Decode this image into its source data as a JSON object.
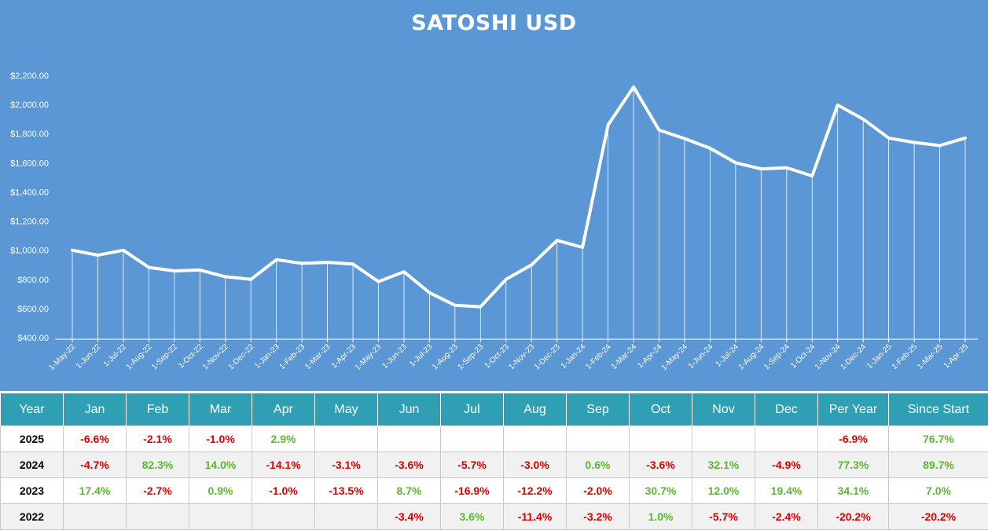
{
  "chart_data": {
    "type": "line",
    "title": "SATOSHI USD",
    "ylim": [
      400,
      2200
    ],
    "y_ticks": [
      "$400.00",
      "$600.00",
      "$800.00",
      "$1,000.00",
      "$1,200.00",
      "$1,400.00",
      "$1,600.00",
      "$1,800.00",
      "$2,000.00",
      "$2,200.00"
    ],
    "y_tick_values": [
      400,
      600,
      800,
      1000,
      1200,
      1400,
      1600,
      1800,
      2000,
      2200
    ],
    "x": [
      "1-May-22",
      "1-Jun-22",
      "1-Jul-22",
      "1-Aug-22",
      "1-Sep-22",
      "1-Oct-22",
      "1-Nov-22",
      "1-Dec-22",
      "1-Jan-23",
      "1-Feb-23",
      "1-Mar-23",
      "1-Apr-23",
      "1-May-23",
      "1-Jun-23",
      "1-Jul-23",
      "1-Aug-23",
      "1-Sep-23",
      "1-Oct-23",
      "1-Nov-23",
      "1-Dec-23",
      "1-Jan-24",
      "1-Feb-24",
      "1-Mar-24",
      "1-Apr-24",
      "1-May-24",
      "1-Jun-24",
      "1-Jul-24",
      "1-Aug-24",
      "1-Sep-24",
      "1-Oct-24",
      "1-Nov-24",
      "1-Dec-24",
      "1-Jan-25",
      "1-Feb-25",
      "1-Mar-25",
      "1-Apr-25"
    ],
    "values": [
      1000,
      966,
      1000,
      882,
      858,
      864,
      818,
      800,
      935,
      910,
      917,
      905,
      785,
      852,
      708,
      622,
      612,
      800,
      899,
      1067,
      1020,
      1860,
      2120,
      1825,
      1766,
      1700,
      1600,
      1558,
      1566,
      1510,
      1997,
      1900,
      1770,
      1740,
      1718,
      1770
    ],
    "grid": false,
    "line_color": "#ffffff",
    "background": "#5b97d5"
  },
  "table": {
    "headers": [
      "Year",
      "Jan",
      "Feb",
      "Mar",
      "Apr",
      "May",
      "Jun",
      "Jul",
      "Aug",
      "Sep",
      "Oct",
      "Nov",
      "Dec",
      "Per Year",
      "Since Start"
    ],
    "rows": [
      [
        "2025",
        "-6.6%",
        "-2.1%",
        "-1.0%",
        "2.9%",
        "",
        "",
        "",
        "",
        "",
        "",
        "",
        "",
        "-6.9%",
        "76.7%"
      ],
      [
        "2024",
        "-4.7%",
        "82.3%",
        "14.0%",
        "-14.1%",
        "-3.1%",
        "-3.6%",
        "-5.7%",
        "-3.0%",
        "0.6%",
        "-3.6%",
        "32.1%",
        "-4.9%",
        "77.3%",
        "89.7%"
      ],
      [
        "2023",
        "17.4%",
        "-2.7%",
        "0.9%",
        "-1.0%",
        "-13.5%",
        "8.7%",
        "-16.9%",
        "-12.2%",
        "-2.0%",
        "30.7%",
        "12.0%",
        "19.4%",
        "34.1%",
        "7.0%"
      ],
      [
        "2022",
        "",
        "",
        "",
        "",
        "",
        "-3.4%",
        "3.6%",
        "-11.4%",
        "-3.2%",
        "1.0%",
        "-5.7%",
        "-2.4%",
        "-20.2%",
        "-20.2%"
      ]
    ],
    "colors": {
      "positive": "#5cb82e",
      "negative": "#e00000",
      "header_bg": "#2fa0b3"
    }
  }
}
